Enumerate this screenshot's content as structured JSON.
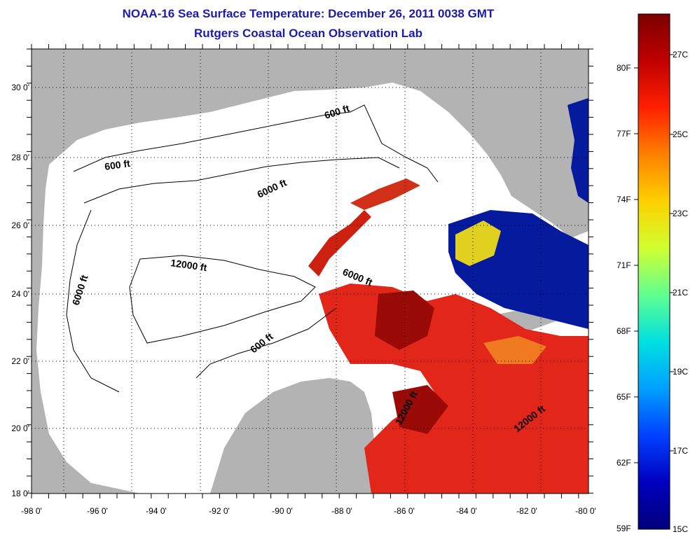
{
  "header": {
    "title_line1": "NOAA-16 Sea Surface Temperature:  December 26, 2011 0038 GMT",
    "title_line2": "Rutgers Coastal Ocean Observation Lab"
  },
  "map": {
    "lon_ticks": [
      "-98 0'",
      "-96 0'",
      "-94 0'",
      "-92 0'",
      "-90 0'",
      "-88 0'",
      "-86 0'",
      "-84 0'",
      "-82 0'",
      "-80 0'"
    ],
    "lat_ticks": [
      "30 0'",
      "28 0'",
      "26 0'",
      "24 0'",
      "22 0'",
      "20 0'",
      "18 0'"
    ],
    "contour_labels": [
      "600 ft",
      "600 ft",
      "6000 ft",
      "6000 ft",
      "12000 ft",
      "6000 ft",
      "600 ft",
      "12000 ft",
      "12000 ft"
    ],
    "colors": {
      "land": "#b3b3b3",
      "no_data": "#ffffff",
      "warm": "#e3261a",
      "hot": "#9a0b08",
      "cold": "#061a9e"
    }
  },
  "colorbar": {
    "fahrenheit_labels": [
      "80F",
      "77F",
      "74F",
      "71F",
      "68F",
      "65F",
      "62F",
      "59F"
    ],
    "celsius_labels": [
      "27C",
      "25C",
      "23C",
      "21C",
      "19C",
      "17C",
      "15C"
    ],
    "gradient": [
      "#7a0000",
      "#c00000",
      "#ff2000",
      "#ff8000",
      "#ffd000",
      "#d0ff30",
      "#60ff90",
      "#00e0e0",
      "#00a0ff",
      "#0040ff",
      "#0000c0",
      "#00007a"
    ]
  }
}
